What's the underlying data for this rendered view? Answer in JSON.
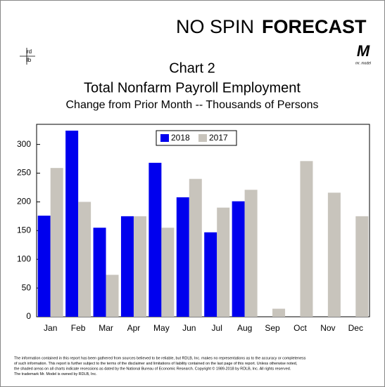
{
  "header": {
    "brand_left": "NO SPIN",
    "brand_right": "FORECAST",
    "logo_left_top": "rd",
    "logo_left_bottom": "lb",
    "logo_right": "M",
    "logo_right_caption": "mr. model"
  },
  "chart_data": {
    "type": "bar",
    "title": "Chart 2",
    "subtitle": "Total Nonfarm Payroll Employment",
    "caption": "Change from Prior Month -- Thousands of Persons",
    "categories": [
      "Jan",
      "Feb",
      "Mar",
      "Apr",
      "May",
      "Jun",
      "Jul",
      "Aug",
      "Sep",
      "Oct",
      "Nov",
      "Dec"
    ],
    "series": [
      {
        "name": "2018",
        "color": "#0000ee",
        "values": [
          176,
          324,
          155,
          175,
          268,
          208,
          147,
          201,
          null,
          null,
          null,
          null
        ]
      },
      {
        "name": "2017",
        "color": "#c8c4bc",
        "values": [
          259,
          200,
          73,
          175,
          155,
          240,
          190,
          221,
          14,
          271,
          216,
          175
        ]
      }
    ],
    "ylim": [
      0,
      335
    ],
    "yticks": [
      0,
      50,
      100,
      150,
      200,
      250,
      300
    ],
    "grid": false,
    "legend": "top"
  },
  "footnote": [
    "The information contained in this report has been gathered from sources believed to be reliable, but RDLB, Inc. makes no representations as to the accuracy or completeness",
    "of such information. This report is further subject to the terms of the disclaimer and limitations of liability contained on the last page of this report. Unless otherwise noted,",
    "the shaded areas on all charts indicate recessions as dated by the National Bureau of Economic Research. Copyright © 1989-2018 by RDLB, Inc. All rights reserved.",
    "The trademark Mr. Model is owned by RDLB, Inc."
  ]
}
